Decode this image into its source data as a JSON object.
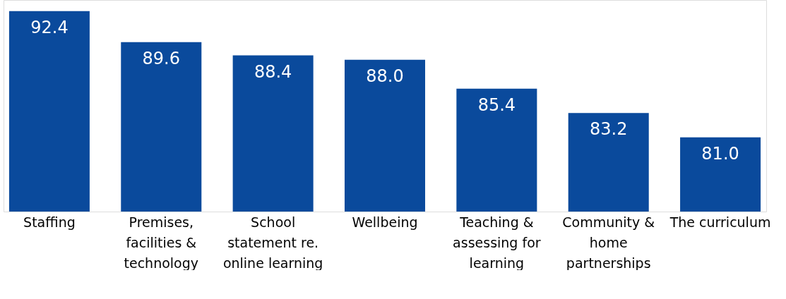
{
  "chart_data": {
    "type": "bar",
    "categories": [
      "Staffing",
      "Premises, facilities & technology",
      "School statement re. online learning",
      "Wellbeing",
      "Teaching & assessing for learning",
      "Community & home partnerships",
      "The curriculum"
    ],
    "values": [
      92.4,
      89.6,
      88.4,
      88.0,
      85.4,
      83.2,
      81.0
    ],
    "color": "#0a4a9c",
    "ylim": [
      74.3,
      93.4
    ],
    "value_labels": [
      "92.4",
      "89.6",
      "88.4",
      "88.0",
      "85.4",
      "83.2",
      "81.0"
    ]
  }
}
